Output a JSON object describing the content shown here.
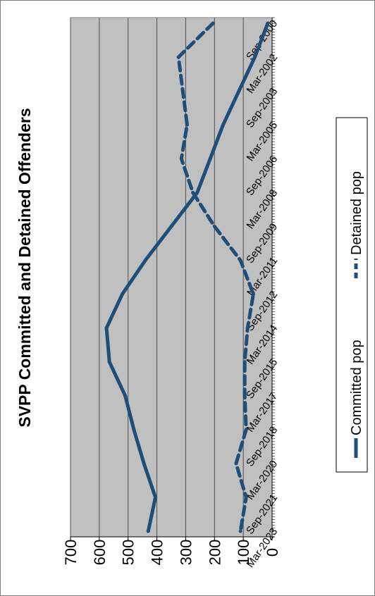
{
  "chart_data": {
    "type": "line",
    "title": "SVPP Committed and Detained Offenders",
    "ylim": [
      0,
      700
    ],
    "yticks": [
      0,
      100,
      200,
      300,
      400,
      500,
      600,
      700
    ],
    "x": [
      "Sep-2000",
      "Mar-2002",
      "Sep-2003",
      "Mar-2005",
      "Sep-2006",
      "Mar-2008",
      "Sep-2009",
      "Mar-2011",
      "Sep-2012",
      "Mar-2014",
      "Sep-2015",
      "Mar-2017",
      "Sep-2018",
      "Mar-2020",
      "Sep-2021",
      "Mar-2023"
    ],
    "series": [
      {
        "name": "Committed pop",
        "color": "#1f4e79",
        "style": "solid",
        "values": [
          15,
          60,
          115,
          170,
          215,
          260,
          350,
          440,
          520,
          575,
          565,
          510,
          480,
          445,
          405,
          430
        ]
      },
      {
        "name": "Detained pop",
        "color": "#1f4e79",
        "style": "dashed",
        "values": [
          205,
          325,
          310,
          295,
          315,
          275,
          200,
          110,
          65,
          85,
          95,
          95,
          90,
          125,
          90,
          110
        ]
      }
    ],
    "grid": true,
    "legend": "bottom"
  }
}
